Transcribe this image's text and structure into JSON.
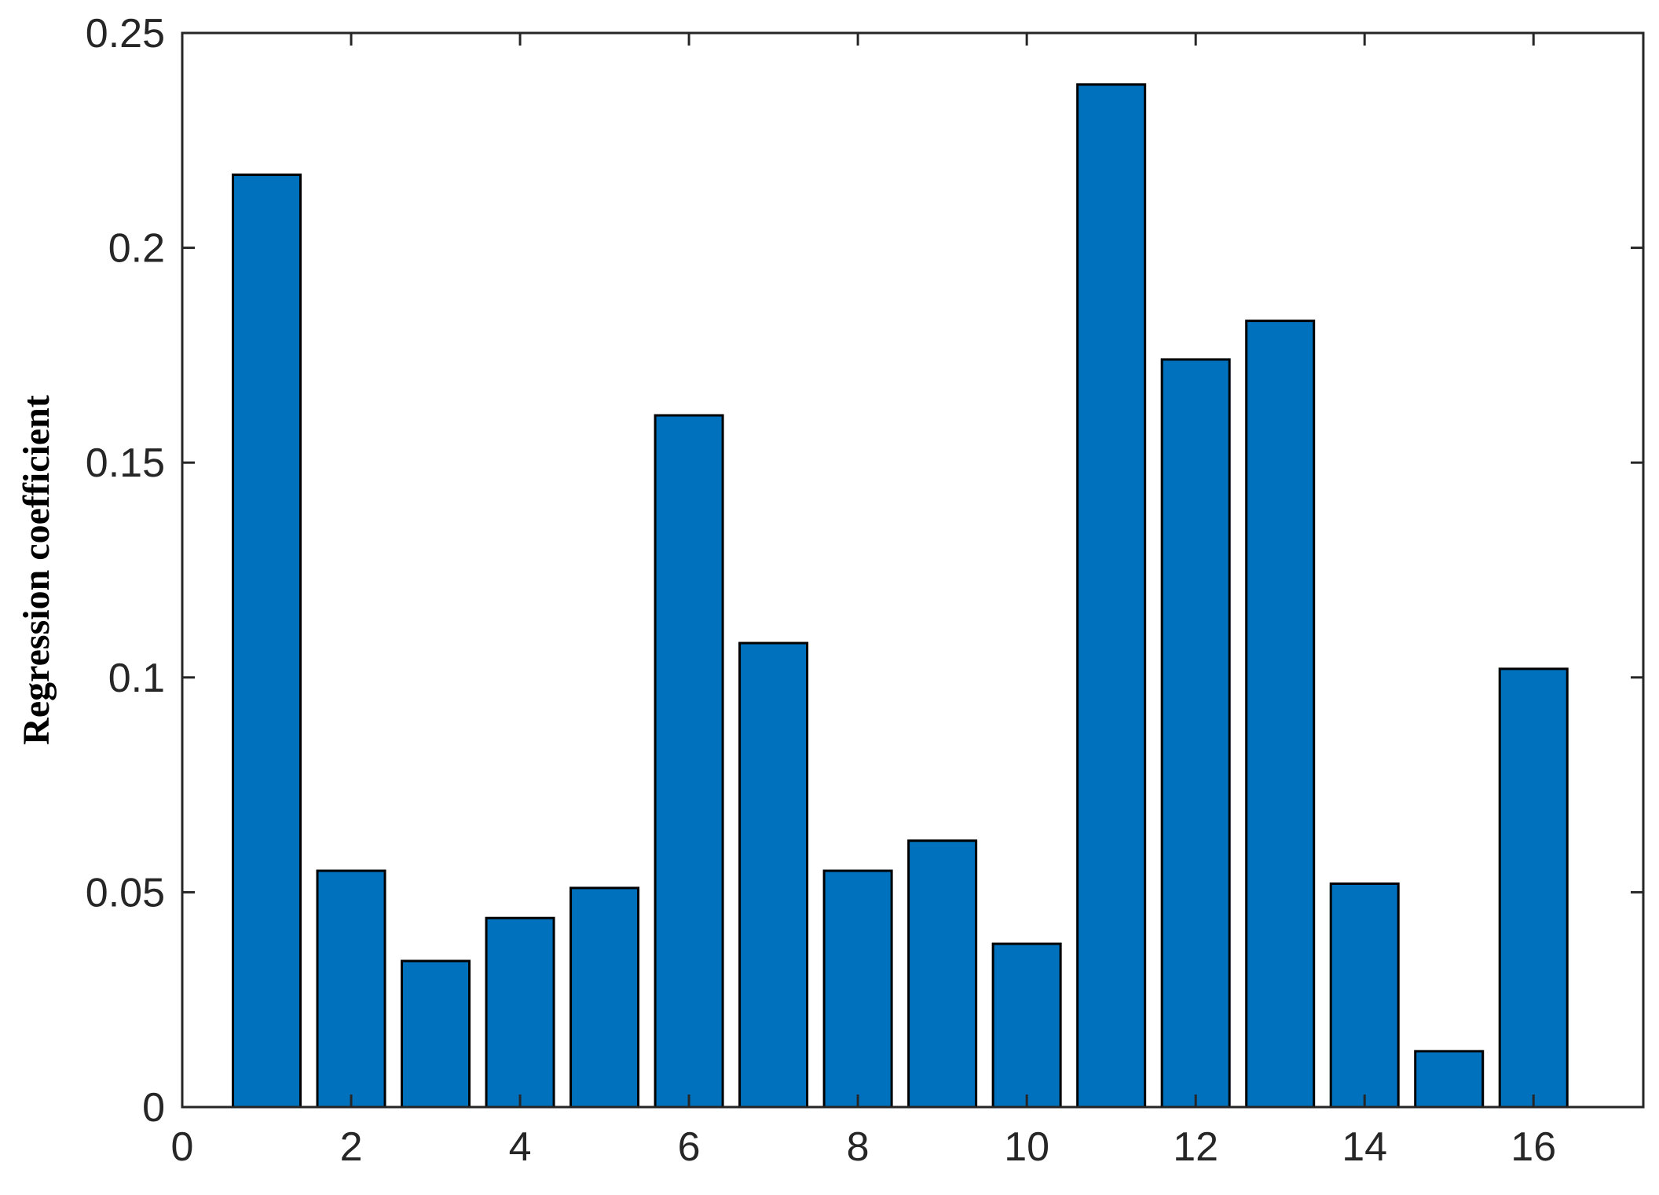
{
  "chart_data": {
    "type": "bar",
    "title": "",
    "xlabel": "",
    "ylabel": "Regression coefficient",
    "x": [
      1,
      2,
      3,
      4,
      5,
      6,
      7,
      8,
      9,
      10,
      11,
      12,
      13,
      14,
      15,
      16
    ],
    "values": [
      0.217,
      0.055,
      0.034,
      0.044,
      0.051,
      0.161,
      0.108,
      0.055,
      0.062,
      0.038,
      0.238,
      0.174,
      0.183,
      0.052,
      0.013,
      0.102
    ],
    "xlim": [
      0,
      17.3
    ],
    "ylim": [
      0,
      0.25
    ],
    "xticks": [
      0,
      2,
      4,
      6,
      8,
      10,
      12,
      14,
      16
    ],
    "xtick_labels": [
      "0",
      "2",
      "4",
      "6",
      "8",
      "10",
      "12",
      "14",
      "16"
    ],
    "yticks": [
      0,
      0.05,
      0.1,
      0.15,
      0.2,
      0.25
    ],
    "ytick_labels": [
      "0",
      "0.05",
      "0.1",
      "0.15",
      "0.2",
      "0.25"
    ],
    "bar_color": "#0072BD",
    "bar_edge_color": "#000000",
    "axis_color": "#262626",
    "grid": false,
    "legend": false
  }
}
